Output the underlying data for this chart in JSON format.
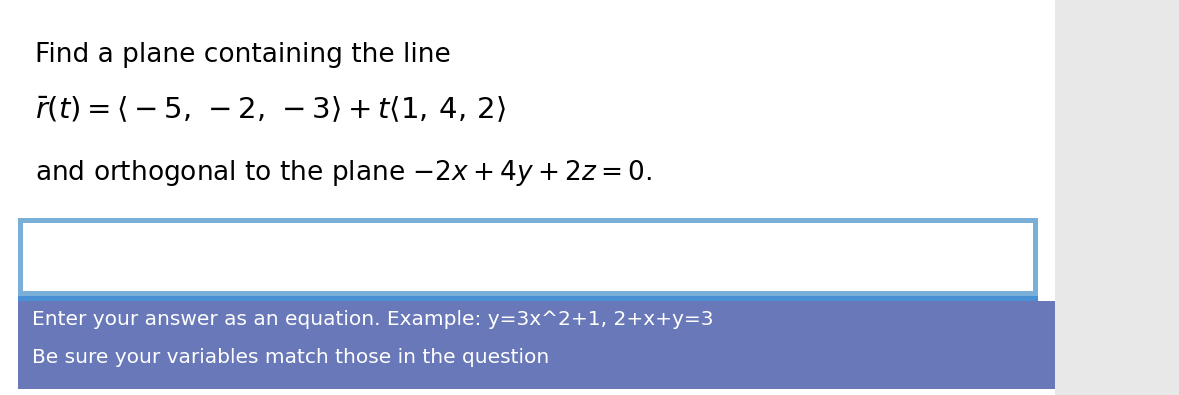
{
  "bg_color": "#ffffff",
  "line1": "Find a plane containing the line",
  "instruction_line1": "Enter your answer as an equation. Example: y=3x^2+1, 2+x+y=3",
  "instruction_line2": "Be sure your variables match those in the question",
  "instruction_bg": "#6878b8",
  "input_box_bg": "#ffffff",
  "input_box_border": "#7ab0d8",
  "right_panel_bg": "#f0f0f0",
  "top_text_color": "#000000",
  "instruction_text_color": "#ffffff",
  "font_size_line1": 19,
  "font_size_math": 21,
  "font_size_line3": 19,
  "font_size_instruction": 14.5
}
